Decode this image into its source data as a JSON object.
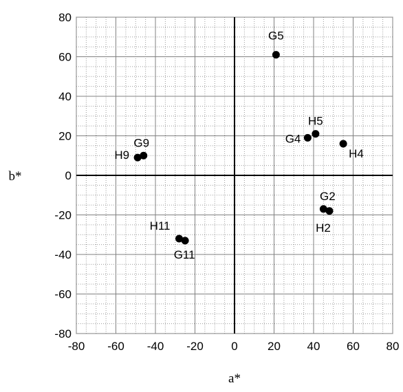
{
  "chart_data": {
    "type": "scatter",
    "title": "",
    "xlabel": "a*",
    "ylabel": "b*",
    "xlim": [
      -80,
      80
    ],
    "ylim": [
      -80,
      80
    ],
    "xticks": [
      -80,
      -60,
      -40,
      -20,
      0,
      20,
      40,
      60,
      80
    ],
    "yticks": [
      -80,
      -60,
      -40,
      -20,
      0,
      20,
      40,
      60,
      80
    ],
    "grid": true,
    "point_color": "#000000",
    "points": [
      {
        "label": "G5",
        "x": 21,
        "y": 61
      },
      {
        "label": "H5",
        "x": 41,
        "y": 21
      },
      {
        "label": "G4",
        "x": 37,
        "y": 19
      },
      {
        "label": "H4",
        "x": 55,
        "y": 16
      },
      {
        "label": "G9",
        "x": -46,
        "y": 10
      },
      {
        "label": "H9",
        "x": -49,
        "y": 9
      },
      {
        "label": "G2",
        "x": 45,
        "y": -17
      },
      {
        "label": "H2",
        "x": 48,
        "y": -18
      },
      {
        "label": "H11",
        "x": -28,
        "y": -32
      },
      {
        "label": "G11",
        "x": -25,
        "y": -33
      }
    ]
  }
}
